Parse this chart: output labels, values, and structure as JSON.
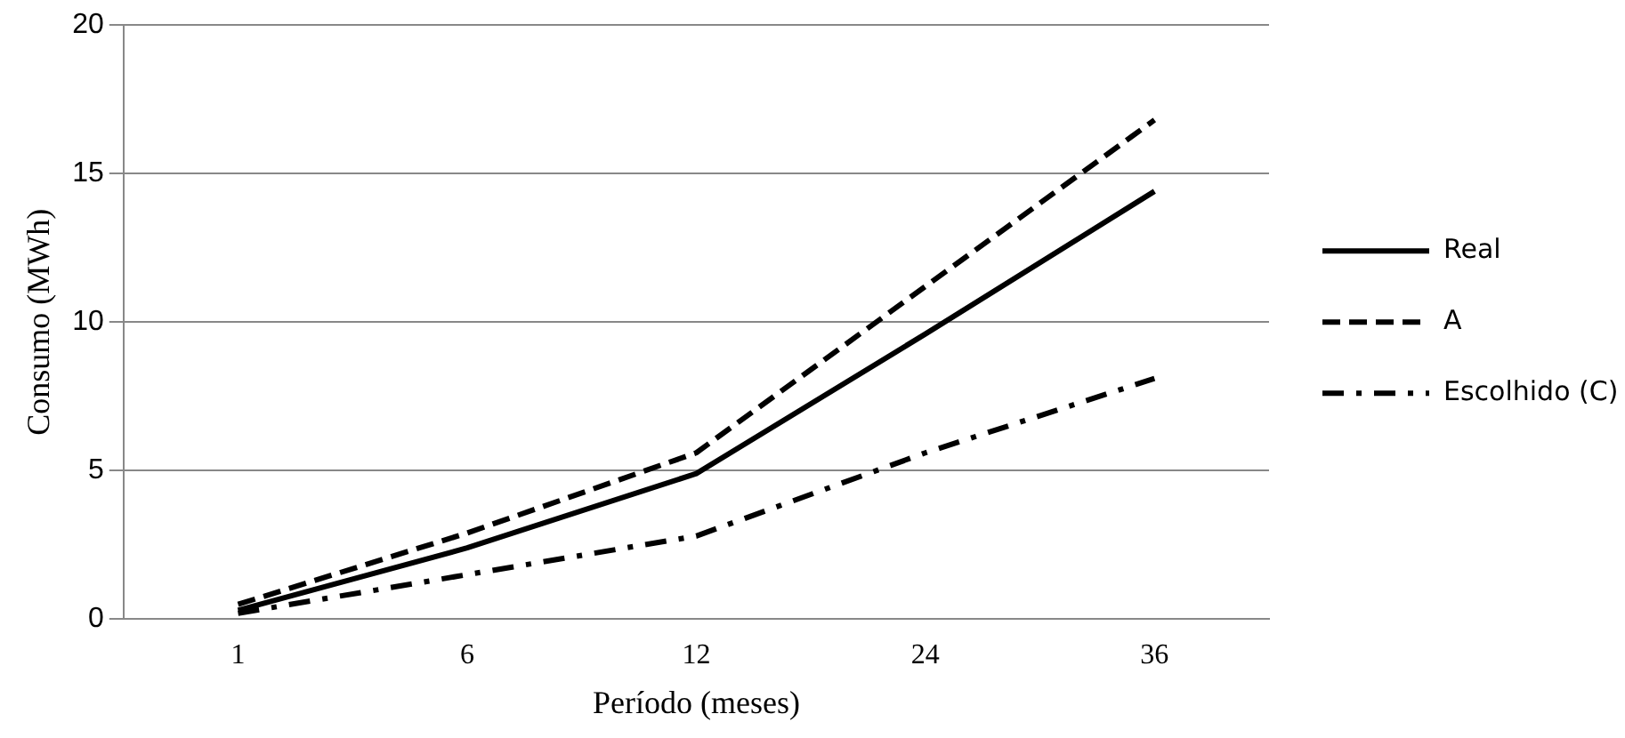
{
  "chart_data": {
    "type": "line",
    "xlabel": "Período (meses)",
    "ylabel": "Consumo (MWh)",
    "categories": [
      "1",
      "6",
      "12",
      "24",
      "36"
    ],
    "series": [
      {
        "name": "Real",
        "color": "#000000",
        "line_style": "solid",
        "values": [
          0.3,
          2.4,
          4.9,
          9.6,
          14.4
        ]
      },
      {
        "name": "A",
        "color": "#000000",
        "line_style": "dashed",
        "values": [
          0.5,
          2.9,
          5.6,
          11.2,
          16.8
        ]
      },
      {
        "name": "Escolhido (C)",
        "color": "#000000",
        "line_style": "dashdot",
        "values": [
          0.2,
          1.5,
          2.8,
          5.6,
          8.1
        ]
      }
    ],
    "ylim": [
      0,
      20
    ],
    "yticks": [
      0,
      5,
      10,
      15,
      20
    ],
    "grid": "y",
    "legend": "right",
    "marker": "none"
  }
}
